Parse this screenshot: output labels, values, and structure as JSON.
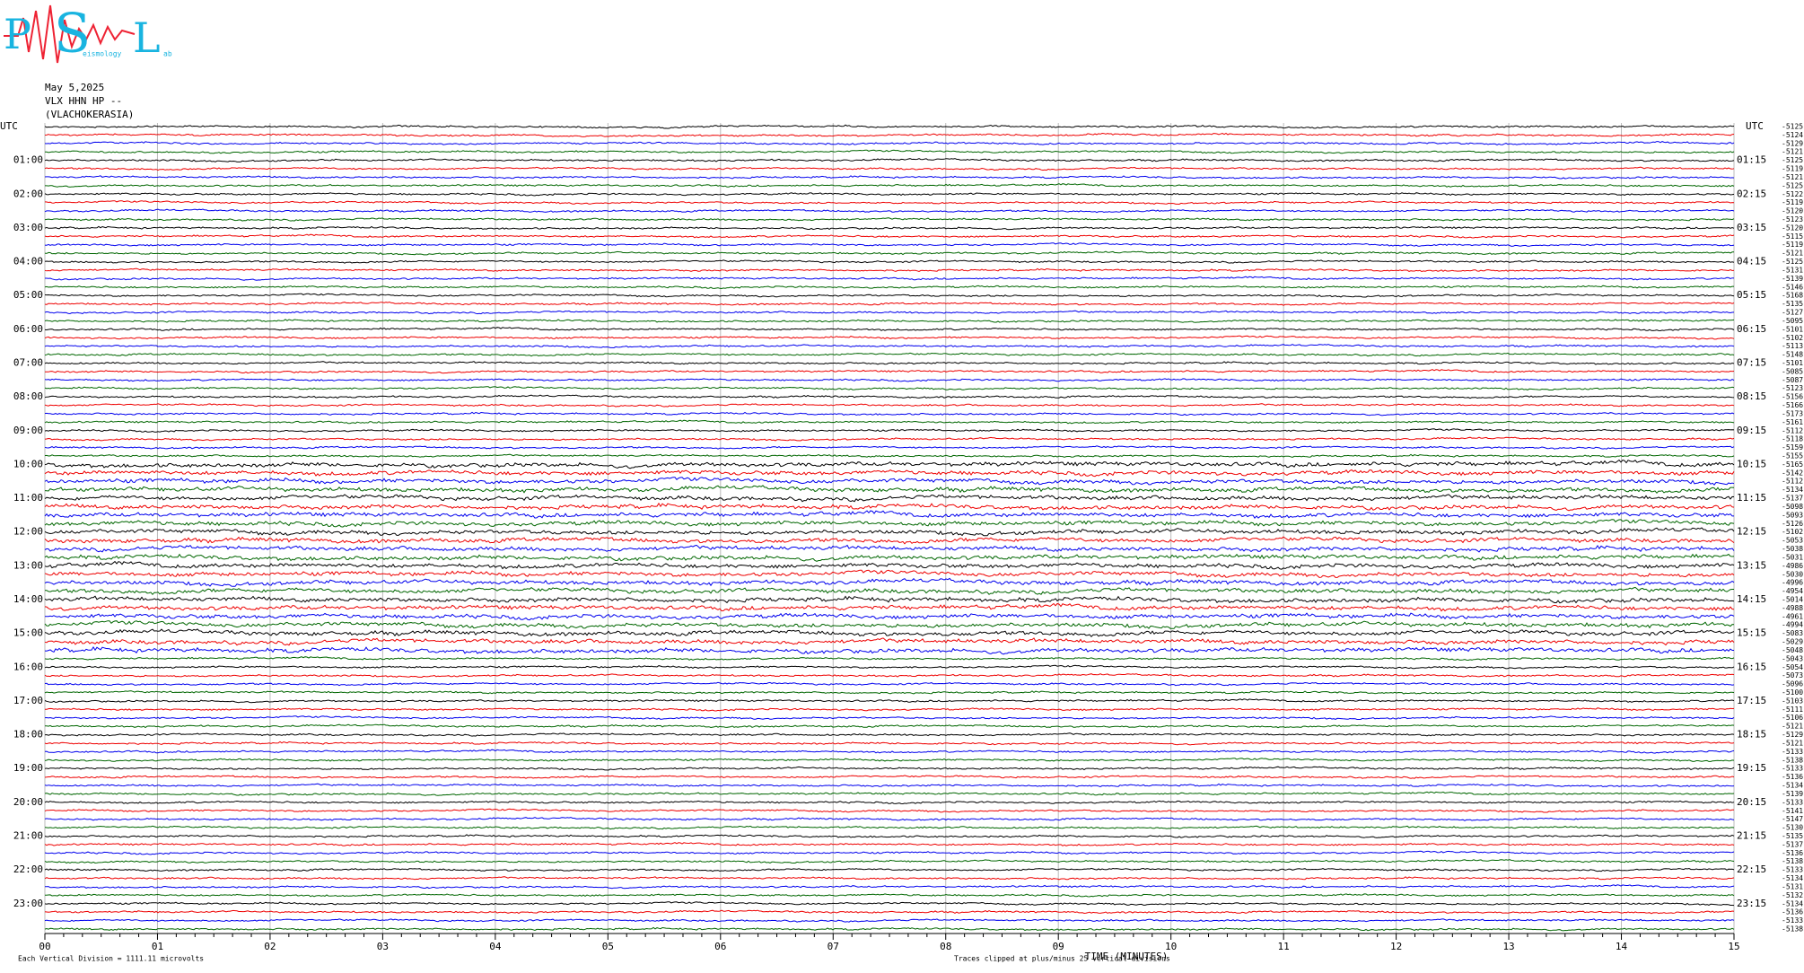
{
  "header": {
    "logo": {
      "letters": [
        "P",
        "S",
        "L"
      ],
      "words": [
        "eismology",
        "ab"
      ]
    },
    "date": "May 5,2025",
    "station": "VLX HHN HP --",
    "location": "(VLACHOKERASIA)"
  },
  "left_title": "UTC",
  "right_title": "UTC",
  "left_labels": [
    "01:00",
    "02:00",
    "03:00",
    "04:00",
    "05:00",
    "06:00",
    "07:00",
    "08:00",
    "09:00",
    "10:00",
    "11:00",
    "12:00",
    "13:00",
    "14:00",
    "15:00",
    "16:00",
    "17:00",
    "18:00",
    "19:00",
    "20:00",
    "21:00",
    "22:00",
    "23:00"
  ],
  "right_labels": [
    "01:15",
    "02:15",
    "03:15",
    "04:15",
    "05:15",
    "06:15",
    "07:15",
    "08:15",
    "09:15",
    "10:15",
    "11:15",
    "12:15",
    "13:15",
    "14:15",
    "15:15",
    "16:15",
    "17:15",
    "18:15",
    "19:15",
    "20:15",
    "21:15",
    "22:15",
    "23:15"
  ],
  "trace_offsets": [
    -5125,
    -5124,
    -5129,
    -5121,
    -5125,
    -5119,
    -5121,
    -5125,
    -5122,
    -5119,
    -5120,
    -5123,
    -5120,
    -5115,
    -5119,
    -5121,
    -5125,
    -5131,
    -5139,
    -5146,
    -5168,
    -5135,
    -5127,
    -5095,
    -5101,
    -5102,
    -5113,
    -5148,
    -5101,
    -5085,
    -5087,
    -5123,
    -5156,
    -5166,
    -5173,
    -5161,
    -5112,
    -5118,
    -5159,
    -5155,
    -5165,
    -5142,
    -5112,
    -5134,
    -5137,
    -5098,
    -5093,
    -5126,
    -5102,
    -5053,
    -5038,
    -5031,
    -4986,
    -5030,
    -4996,
    -4954,
    -5014,
    -4988,
    -4961,
    -4994,
    -5083,
    -5029,
    -5048,
    -5043,
    -5054,
    -5073,
    -5096,
    -5100,
    -5103,
    -5111,
    -5106,
    -5121,
    -5129,
    -5121,
    -5133,
    -5138,
    -5133,
    -5136,
    -5134,
    -5139,
    -5133,
    -5141,
    -5147,
    -5130,
    -5135,
    -5137,
    -5136,
    -5138,
    -5133,
    -5134,
    -5131,
    -5132,
    -5134,
    -5136,
    -5133,
    -5138
  ],
  "x_labels": [
    "00",
    "01",
    "02",
    "03",
    "04",
    "05",
    "06",
    "07",
    "08",
    "09",
    "10",
    "11",
    "12",
    "13",
    "14",
    "15"
  ],
  "x_title": "TIME (MINUTES)",
  "footer_left": "Each Vertical Division = 1111.11 microvolts",
  "footer_right": "Traces clipped at plus/minus 25 vertical divisions"
}
